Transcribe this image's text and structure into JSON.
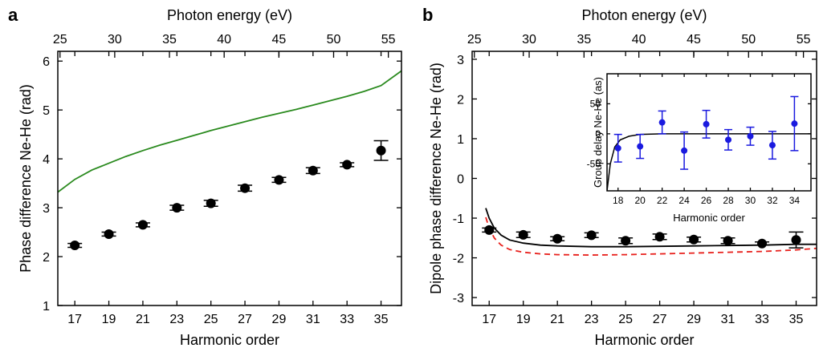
{
  "chart_data": [
    {
      "panel": "a",
      "type": "scatter",
      "xlabel": "Harmonic order",
      "x2label": "Photon energy (eV)",
      "ylabel": "Phase difference Ne-He (rad)",
      "xlim": [
        16,
        36.2
      ],
      "ylim": [
        1,
        6.2
      ],
      "x2lim": [
        24.8,
        56.2
      ],
      "xticks": [
        17,
        19,
        21,
        23,
        25,
        27,
        29,
        31,
        33,
        35
      ],
      "x2ticks": [
        25,
        30,
        35,
        40,
        45,
        50,
        55
      ],
      "yticks": [
        1,
        2,
        3,
        4,
        5,
        6
      ],
      "series": [
        {
          "kind": "points",
          "color": "#000000",
          "x": [
            17,
            19,
            21,
            23,
            25,
            27,
            29,
            31,
            33,
            35
          ],
          "y": [
            2.23,
            2.46,
            2.65,
            3.0,
            3.09,
            3.4,
            3.57,
            3.76,
            3.88,
            4.17
          ],
          "err": [
            0.04,
            0.04,
            0.04,
            0.05,
            0.06,
            0.06,
            0.05,
            0.06,
            0.04,
            0.2
          ]
        },
        {
          "kind": "line",
          "color": "#2a8a1e",
          "x": [
            16,
            17,
            18,
            19,
            20,
            21,
            22,
            23,
            24,
            25,
            26,
            27,
            28,
            29,
            30,
            31,
            32,
            33,
            34,
            35,
            36.2
          ],
          "y": [
            3.32,
            3.58,
            3.77,
            3.91,
            4.05,
            4.17,
            4.28,
            4.38,
            4.48,
            4.58,
            4.67,
            4.76,
            4.85,
            4.93,
            5.01,
            5.1,
            5.19,
            5.28,
            5.38,
            5.5,
            5.8
          ]
        }
      ]
    },
    {
      "panel": "b",
      "type": "scatter",
      "xlabel": "Harmonic order",
      "x2label": "Photon energy (eV)",
      "ylabel": "Dipole phase difference Ne-He (rad)",
      "xlim": [
        16,
        36.2
      ],
      "ylim": [
        -3.2,
        3.2
      ],
      "x2lim": [
        24.8,
        56.2
      ],
      "xticks": [
        17,
        19,
        21,
        23,
        25,
        27,
        29,
        31,
        33,
        35
      ],
      "x2ticks": [
        25,
        30,
        35,
        40,
        45,
        50,
        55
      ],
      "yticks": [
        -3,
        -2,
        -1,
        0,
        1,
        2,
        3
      ],
      "series": [
        {
          "kind": "points",
          "color": "#000000",
          "x": [
            17,
            19,
            21,
            23,
            25,
            27,
            29,
            31,
            33,
            35
          ],
          "y": [
            -1.3,
            -1.42,
            -1.52,
            -1.43,
            -1.57,
            -1.47,
            -1.54,
            -1.57,
            -1.64,
            -1.55
          ],
          "err": [
            0.05,
            0.07,
            0.05,
            0.06,
            0.07,
            0.07,
            0.06,
            0.07,
            0.04,
            0.2
          ]
        },
        {
          "kind": "line",
          "color": "#000000",
          "x": [
            16.8,
            17.0,
            17.3,
            17.7,
            18.2,
            19,
            20,
            21,
            23,
            25,
            27,
            29,
            31,
            33,
            35,
            36.2
          ],
          "y": [
            -0.75,
            -1.0,
            -1.25,
            -1.43,
            -1.55,
            -1.63,
            -1.68,
            -1.7,
            -1.72,
            -1.72,
            -1.71,
            -1.7,
            -1.69,
            -1.68,
            -1.66,
            -1.66
          ]
        },
        {
          "kind": "line",
          "dashed": true,
          "color": "#e8201c",
          "x": [
            16.8,
            17.0,
            17.3,
            17.7,
            18.2,
            19,
            20,
            21,
            23,
            25,
            27,
            29,
            31,
            33,
            35,
            36.2
          ],
          "y": [
            -0.98,
            -1.25,
            -1.5,
            -1.68,
            -1.79,
            -1.86,
            -1.9,
            -1.92,
            -1.93,
            -1.92,
            -1.9,
            -1.88,
            -1.86,
            -1.84,
            -1.8,
            -1.76
          ]
        }
      ]
    },
    {
      "panel": "b-inset",
      "type": "scatter",
      "xlabel": "Harmonic order",
      "ylabel": "Group delay Ne-He (as)",
      "xlim": [
        17,
        35.5
      ],
      "ylim": [
        -95,
        100
      ],
      "xticks": [
        18,
        20,
        22,
        24,
        26,
        28,
        30,
        32,
        34
      ],
      "yticks": [
        -50,
        0,
        50
      ],
      "series": [
        {
          "kind": "points",
          "color": "#1a1adf",
          "x": [
            18,
            20,
            22,
            24,
            26,
            28,
            30,
            32,
            34
          ],
          "y": [
            -24,
            -21,
            19,
            -28,
            16,
            -10,
            -4,
            -19,
            17
          ],
          "err": [
            23,
            20,
            19,
            31,
            23,
            17,
            15,
            23,
            45
          ]
        },
        {
          "kind": "line",
          "color": "#000000",
          "x": [
            17,
            17.3,
            17.7,
            18.2,
            19,
            20,
            22,
            26,
            30,
            35.5
          ],
          "y": [
            -95,
            -50,
            -22,
            -10,
            -4,
            -1,
            0,
            0,
            0,
            0
          ]
        }
      ]
    }
  ],
  "labels": {
    "panel_a": "a",
    "panel_b": "b"
  }
}
